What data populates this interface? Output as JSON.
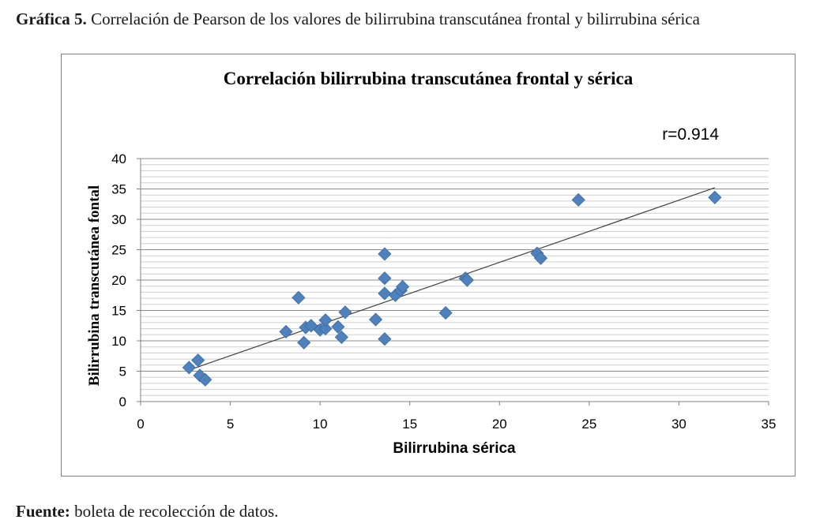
{
  "figure": {
    "caption_label": "Gráfica 5.",
    "caption_text": " Correlación de Pearson de los valores de bilirrubina transcutánea frontal y bilirrubina sérica",
    "source_label": "Fuente:",
    "source_text": " boleta de recolección de datos."
  },
  "chart_data": {
    "type": "scatter",
    "title": "Correlación bilirrubina transcutánea frontal y sérica",
    "xlabel": "Bilirrubina sérica",
    "ylabel": "Bilirrubina transcutánea fontal",
    "annotation": "r=0.914",
    "xlim": [
      0,
      35
    ],
    "ylim": [
      0,
      40
    ],
    "xticks": [
      0,
      5,
      10,
      15,
      20,
      25,
      30,
      35
    ],
    "yticks": [
      0,
      5,
      10,
      15,
      20,
      25,
      30,
      35,
      40
    ],
    "x_tick_labels": [
      "0",
      "5",
      "10",
      "15",
      "20",
      "25",
      "30",
      "35"
    ],
    "y_tick_labels": [
      "0",
      "5",
      "10",
      "15",
      "20",
      "25",
      "30",
      "35",
      "40"
    ],
    "grid": true,
    "legend": "none",
    "marker_color": "#4F81BD",
    "trendline_color": "#404040",
    "trendline": [
      [
        3,
        5.5
      ],
      [
        32,
        35.2
      ]
    ],
    "points": [
      {
        "x": 2.7,
        "y": 5.6
      },
      {
        "x": 3.2,
        "y": 6.8
      },
      {
        "x": 3.3,
        "y": 4.3
      },
      {
        "x": 3.6,
        "y": 3.6
      },
      {
        "x": 8.1,
        "y": 11.5
      },
      {
        "x": 8.8,
        "y": 17.1
      },
      {
        "x": 9.1,
        "y": 9.7
      },
      {
        "x": 9.2,
        "y": 12.2
      },
      {
        "x": 9.5,
        "y": 12.5
      },
      {
        "x": 10.0,
        "y": 11.8
      },
      {
        "x": 10.3,
        "y": 12.0
      },
      {
        "x": 10.3,
        "y": 13.4
      },
      {
        "x": 11.0,
        "y": 12.3
      },
      {
        "x": 11.2,
        "y": 10.6
      },
      {
        "x": 11.4,
        "y": 14.7
      },
      {
        "x": 13.1,
        "y": 13.5
      },
      {
        "x": 13.6,
        "y": 10.3
      },
      {
        "x": 13.6,
        "y": 17.8
      },
      {
        "x": 13.6,
        "y": 20.3
      },
      {
        "x": 13.6,
        "y": 24.3
      },
      {
        "x": 14.2,
        "y": 17.5
      },
      {
        "x": 14.5,
        "y": 18.3
      },
      {
        "x": 14.6,
        "y": 18.9
      },
      {
        "x": 17.0,
        "y": 14.6
      },
      {
        "x": 18.1,
        "y": 20.3
      },
      {
        "x": 18.2,
        "y": 20.0
      },
      {
        "x": 22.1,
        "y": 24.4
      },
      {
        "x": 22.3,
        "y": 23.6
      },
      {
        "x": 24.4,
        "y": 33.2
      },
      {
        "x": 32.0,
        "y": 33.6
      }
    ]
  }
}
